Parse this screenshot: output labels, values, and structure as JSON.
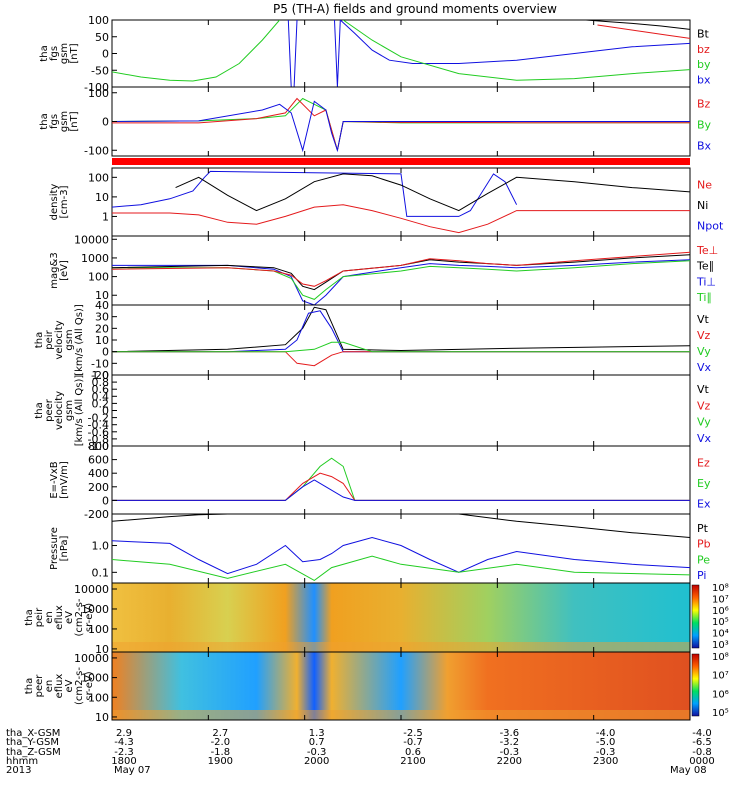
{
  "title": "P5 (TH-A) fields and ground moments overview",
  "colors": {
    "black": "#000000",
    "red": "#e41a1c",
    "green": "#22cc22",
    "blue": "#1010e0",
    "bar": "#ff0000"
  },
  "chart_data": [
    {
      "type": "line",
      "name": "fgs",
      "ylabel_lines": [
        "tha",
        "fgs",
        "gsm",
        "[nT]"
      ],
      "ylim": [
        -100,
        100
      ],
      "yticks": [
        "100",
        "50",
        "0",
        "-50",
        "-100"
      ],
      "legend": [
        {
          "label": "Bt",
          "color": "black"
        },
        {
          "label": "bz",
          "color": "red"
        },
        {
          "label": "by",
          "color": "green"
        },
        {
          "label": "bx",
          "color": "blue"
        }
      ],
      "series": [
        {
          "color": "green",
          "x": [
            0,
            0.05,
            0.1,
            0.14,
            0.18,
            0.22,
            0.26,
            0.29
          ],
          "y": [
            -55,
            -70,
            -80,
            -82,
            -70,
            -30,
            40,
            100
          ]
        },
        {
          "color": "blue",
          "x": [
            0.305,
            0.31,
            0.315,
            0.32
          ],
          "y": [
            100,
            -100,
            -100,
            100
          ]
        },
        {
          "color": "blue",
          "x": [
            0.385,
            0.39,
            0.395,
            0.42,
            0.45,
            0.48,
            0.52,
            0.6,
            0.7,
            0.8,
            0.9,
            1.0
          ],
          "y": [
            100,
            -100,
            100,
            60,
            10,
            -20,
            -30,
            -30,
            -20,
            0,
            20,
            30
          ]
        },
        {
          "color": "green",
          "x": [
            0.4,
            0.45,
            0.5,
            0.6,
            0.7,
            0.8,
            0.9,
            1.0
          ],
          "y": [
            100,
            40,
            -10,
            -60,
            -80,
            -75,
            -60,
            -48
          ]
        },
        {
          "color": "black",
          "x": [
            0.82,
            0.86,
            0.9,
            0.95,
            1.0
          ],
          "y": [
            100,
            95,
            90,
            82,
            72
          ]
        },
        {
          "color": "red",
          "x": [
            0.84,
            0.88,
            0.92,
            0.96,
            1.0
          ],
          "y": [
            85,
            75,
            65,
            55,
            45
          ]
        }
      ]
    },
    {
      "type": "line",
      "name": "fgs-gsm",
      "ylabel_lines": [
        "tha",
        "fgs",
        "gsm",
        "[nT]"
      ],
      "ylim": [
        -120,
        120
      ],
      "yticks": [
        "100",
        "0",
        "-100"
      ],
      "legend": [
        {
          "label": "Bz",
          "color": "red"
        },
        {
          "label": "By",
          "color": "green"
        },
        {
          "label": "Bx",
          "color": "blue"
        }
      ],
      "series": [
        {
          "color": "green",
          "x": [
            0,
            0.15,
            0.25,
            0.3,
            0.33,
            0.35,
            0.37,
            0.39,
            0.4,
            0.5,
            0.7,
            1.0
          ],
          "y": [
            0,
            2,
            10,
            20,
            80,
            60,
            40,
            -100,
            0,
            -5,
            -5,
            -4
          ]
        },
        {
          "color": "red",
          "x": [
            0,
            0.15,
            0.25,
            0.3,
            0.32,
            0.35,
            0.37,
            0.39,
            0.4,
            0.5,
            0.7,
            1.0
          ],
          "y": [
            -5,
            -5,
            10,
            30,
            80,
            20,
            40,
            -100,
            0,
            -3,
            -4,
            -4
          ]
        },
        {
          "color": "blue",
          "x": [
            0,
            0.15,
            0.26,
            0.29,
            0.31,
            0.33,
            0.35,
            0.37,
            0.38,
            0.39,
            0.4,
            0.5,
            0.7,
            1.0
          ],
          "y": [
            0,
            2,
            40,
            60,
            30,
            -100,
            70,
            40,
            -40,
            -100,
            0,
            0,
            0,
            0
          ]
        }
      ]
    },
    {
      "type": "line",
      "name": "density",
      "ylabel_lines": [
        "density",
        "[cm-3]"
      ],
      "log": true,
      "ylim": [
        0.1,
        300
      ],
      "yticks": [
        "100",
        "10",
        "1"
      ],
      "legend": [
        {
          "label": "Ne",
          "color": "red"
        },
        {
          "label": "Ni",
          "color": "black"
        },
        {
          "label": "Npot",
          "color": "blue"
        }
      ],
      "series": [
        {
          "color": "blue",
          "x": [
            0,
            0.05,
            0.1,
            0.14,
            0.16,
            0.17,
            0.5,
            0.51,
            0.6,
            0.62,
            0.66,
            0.68,
            0.7
          ],
          "y": [
            3,
            4,
            8,
            20,
            100,
            200,
            150,
            1,
            1,
            2,
            150,
            60,
            4
          ]
        },
        {
          "color": "black",
          "x": [
            0.11,
            0.15,
            0.2,
            0.25,
            0.3,
            0.35,
            0.4,
            0.45,
            0.5,
            0.55,
            0.6,
            0.65,
            0.7,
            0.8,
            0.9,
            1.0
          ],
          "y": [
            30,
            100,
            12,
            2,
            8,
            60,
            150,
            120,
            40,
            8,
            2,
            15,
            100,
            60,
            30,
            18
          ]
        },
        {
          "color": "red",
          "x": [
            0,
            0.05,
            0.1,
            0.15,
            0.2,
            0.25,
            0.3,
            0.35,
            0.4,
            0.45,
            0.5,
            0.55,
            0.6,
            0.65,
            0.7,
            0.8,
            0.9,
            1.0
          ],
          "y": [
            1.5,
            1.5,
            1.5,
            1.2,
            0.5,
            0.4,
            1.0,
            3,
            4,
            2,
            0.8,
            0.3,
            0.15,
            0.4,
            2,
            2,
            2,
            2
          ]
        }
      ]
    },
    {
      "type": "line",
      "name": "temperature",
      "ylabel_lines": [
        "mag&3",
        "[eV]"
      ],
      "log": true,
      "ylim": [
        3,
        15000
      ],
      "yticks": [
        "10000",
        "1000",
        "100",
        "10"
      ],
      "legend": [
        {
          "label": "Te⊥",
          "color": "red"
        },
        {
          "label": "Te∥",
          "color": "black"
        },
        {
          "label": "Ti⊥",
          "color": "blue"
        },
        {
          "label": "Ti∥",
          "color": "green"
        }
      ],
      "series": [
        {
          "color": "blue",
          "x": [
            0,
            0.2,
            0.28,
            0.31,
            0.33,
            0.35,
            0.37,
            0.4,
            0.5,
            0.55,
            0.6,
            0.65,
            0.7,
            0.8,
            0.9,
            1.0
          ],
          "y": [
            400,
            400,
            250,
            100,
            5,
            3,
            10,
            100,
            300,
            500,
            400,
            350,
            300,
            400,
            600,
            800
          ]
        },
        {
          "color": "green",
          "x": [
            0,
            0.2,
            0.28,
            0.31,
            0.33,
            0.35,
            0.37,
            0.4,
            0.5,
            0.55,
            0.6,
            0.65,
            0.7,
            0.8,
            0.9,
            1.0
          ],
          "y": [
            300,
            300,
            200,
            80,
            10,
            6,
            20,
            100,
            200,
            350,
            300,
            250,
            200,
            300,
            500,
            700
          ]
        },
        {
          "color": "black",
          "x": [
            0,
            0.2,
            0.28,
            0.31,
            0.33,
            0.35,
            0.37,
            0.4,
            0.5,
            0.55,
            0.6,
            0.65,
            0.7,
            0.8,
            0.9,
            1.0
          ],
          "y": [
            300,
            400,
            300,
            150,
            30,
            20,
            50,
            200,
            400,
            800,
            600,
            500,
            400,
            600,
            1000,
            1500
          ]
        },
        {
          "color": "red",
          "x": [
            0,
            0.2,
            0.28,
            0.31,
            0.33,
            0.35,
            0.37,
            0.4,
            0.5,
            0.55,
            0.6,
            0.65,
            0.7,
            0.8,
            0.9,
            1.0
          ],
          "y": [
            250,
            300,
            200,
            120,
            40,
            30,
            60,
            200,
            400,
            900,
            700,
            500,
            400,
            700,
            1200,
            2000
          ]
        }
      ]
    },
    {
      "type": "line",
      "name": "peir-velocity",
      "ylabel_lines": [
        "tha",
        "peir",
        "velocity",
        "gsm",
        "[km/s (All Qs)]"
      ],
      "ylim": [
        -20,
        40
      ],
      "yticks": [
        "40",
        "30",
        "20",
        "10",
        "0",
        "-10",
        "-20"
      ],
      "legend": [
        {
          "label": "Vt",
          "color": "black"
        },
        {
          "label": "Vz",
          "color": "red"
        },
        {
          "label": "Vy",
          "color": "green"
        },
        {
          "label": "Vx",
          "color": "blue"
        }
      ],
      "series": [
        {
          "color": "black",
          "x": [
            0,
            0.2,
            0.3,
            0.33,
            0.35,
            0.37,
            0.4,
            0.5,
            0.7,
            1.0
          ],
          "y": [
            0,
            2,
            6,
            20,
            38,
            36,
            2,
            1,
            3,
            5
          ]
        },
        {
          "color": "blue",
          "x": [
            0,
            0.2,
            0.3,
            0.32,
            0.34,
            0.36,
            0.38,
            0.4,
            0.5,
            1.0
          ],
          "y": [
            0,
            0,
            2,
            10,
            33,
            35,
            20,
            0,
            0,
            0
          ]
        },
        {
          "color": "red",
          "x": [
            0,
            0.3,
            0.32,
            0.35,
            0.38,
            0.4,
            0.5,
            1.0
          ],
          "y": [
            0,
            0,
            -10,
            -12,
            -3,
            0,
            0,
            0
          ]
        },
        {
          "color": "green",
          "x": [
            0,
            0.3,
            0.35,
            0.38,
            0.4,
            0.45,
            1.0
          ],
          "y": [
            0,
            0,
            2,
            8,
            8,
            0,
            0
          ]
        }
      ]
    },
    {
      "type": "line",
      "name": "peer-velocity",
      "ylabel_lines": [
        "tha",
        "peer",
        "velocity",
        "gsm",
        "[km/s (All Qs)]"
      ],
      "ylim": [
        -1,
        1
      ],
      "yticks": [
        "1.0",
        "0.8",
        "0.6",
        "0.4",
        "0.2",
        "0",
        "-0.2",
        "-0.4",
        "-0.6",
        "-0.8",
        "-1.0"
      ],
      "legend": [
        {
          "label": "Vt",
          "color": "black"
        },
        {
          "label": "Vz",
          "color": "red"
        },
        {
          "label": "Vy",
          "color": "green"
        },
        {
          "label": "Vx",
          "color": "blue"
        }
      ],
      "series": []
    },
    {
      "type": "line",
      "name": "efield",
      "ylabel_lines": [
        "E=-VxB",
        "[mV/m]"
      ],
      "ylim": [
        -200,
        800
      ],
      "yticks": [
        "800",
        "600",
        "400",
        "200",
        "0",
        "-200"
      ],
      "legend": [
        {
          "label": "Ez",
          "color": "red"
        },
        {
          "label": "Ey",
          "color": "green"
        },
        {
          "label": "Ex",
          "color": "blue"
        }
      ],
      "series": [
        {
          "color": "green",
          "x": [
            0,
            0.3,
            0.33,
            0.36,
            0.38,
            0.4,
            0.42,
            1.0
          ],
          "y": [
            0,
            0,
            200,
            500,
            620,
            500,
            0,
            0
          ]
        },
        {
          "color": "red",
          "x": [
            0,
            0.3,
            0.33,
            0.36,
            0.38,
            0.4,
            0.42,
            1.0
          ],
          "y": [
            0,
            0,
            250,
            400,
            350,
            250,
            0,
            0
          ]
        },
        {
          "color": "blue",
          "x": [
            0,
            0.3,
            0.33,
            0.35,
            0.37,
            0.4,
            0.42,
            1.0
          ],
          "y": [
            0,
            0,
            200,
            300,
            200,
            50,
            0,
            0
          ]
        }
      ]
    },
    {
      "type": "line",
      "name": "pressure",
      "ylabel_lines": [
        "Pressure",
        "[nPa]"
      ],
      "log": true,
      "ylim": [
        0.04,
        15
      ],
      "yticks": [
        "1.0",
        "0.1"
      ],
      "legend": [
        {
          "label": "Pt",
          "color": "black"
        },
        {
          "label": "Pb",
          "color": "red"
        },
        {
          "label": "Pe",
          "color": "green"
        },
        {
          "label": "Pi",
          "color": "blue"
        }
      ],
      "series": [
        {
          "color": "black",
          "x": [
            0,
            0.1,
            0.15,
            0.2
          ],
          "y": [
            8,
            12,
            14,
            15
          ]
        },
        {
          "color": "black",
          "x": [
            0.6,
            0.7,
            0.8,
            0.9,
            1.0
          ],
          "y": [
            15,
            8,
            5,
            3,
            2
          ]
        },
        {
          "color": "blue",
          "x": [
            0,
            0.1,
            0.15,
            0.2,
            0.25,
            0.3,
            0.33,
            0.36,
            0.38,
            0.4,
            0.45,
            0.5,
            0.55,
            0.6,
            0.65,
            0.7,
            0.8,
            0.9,
            1.0
          ],
          "y": [
            1.5,
            1.2,
            0.3,
            0.09,
            0.2,
            1.0,
            0.25,
            0.3,
            0.5,
            1.0,
            2,
            1,
            0.3,
            0.1,
            0.3,
            0.6,
            0.3,
            0.2,
            0.15
          ]
        },
        {
          "color": "green",
          "x": [
            0,
            0.1,
            0.2,
            0.3,
            0.35,
            0.38,
            0.45,
            0.5,
            0.6,
            0.7,
            0.8,
            1.0
          ],
          "y": [
            0.3,
            0.2,
            0.06,
            0.2,
            0.05,
            0.15,
            0.4,
            0.2,
            0.1,
            0.2,
            0.1,
            0.08
          ]
        }
      ]
    },
    {
      "type": "heatmap",
      "name": "peir-energy-flux",
      "ylabel_lines": [
        "tha",
        "peir",
        "en",
        "eflux",
        "eV",
        "(cm2-s-",
        "sr-eV)"
      ],
      "log": true,
      "ylim": [
        7,
        20000
      ],
      "yticks": [
        "10000",
        "1000",
        "100",
        "10"
      ],
      "colorbar_labels": [
        "10⁸",
        "10⁷",
        "10⁶",
        "10⁵",
        "10⁴",
        "10³"
      ]
    },
    {
      "type": "heatmap",
      "name": "peer-energy-flux",
      "ylabel_lines": [
        "tha",
        "peer",
        "en",
        "eflux",
        "eV",
        "(cm2-s-",
        "sr-eV)"
      ],
      "log": true,
      "ylim": [
        7,
        20000
      ],
      "yticks": [
        "10000",
        "1000",
        "100",
        "10"
      ],
      "colorbar_labels": [
        "10⁸",
        "10⁷",
        "10⁶",
        "10⁵"
      ]
    }
  ],
  "axis_table": {
    "rows": [
      {
        "label": "tha_X-GSM",
        "values": [
          "2.9",
          "2.7",
          "1.3",
          "-2.5",
          "-3.6",
          "-4.0",
          "-4.0"
        ]
      },
      {
        "label": "tha_Y-GSM",
        "values": [
          "-4.3",
          "-2.0",
          "0.7",
          "-0.7",
          "-3.2",
          "-5.0",
          "-6.5"
        ]
      },
      {
        "label": "tha_Z-GSM",
        "values": [
          "-2.3",
          "-1.8",
          "-0.3",
          "0.6",
          "-0.3",
          "-0.3",
          "-0.8"
        ]
      },
      {
        "label": "hhmm",
        "values": [
          "1800",
          "1900",
          "2000",
          "2100",
          "2200",
          "2300",
          "0000"
        ]
      }
    ],
    "year": "2013",
    "date_start": "May 07",
    "date_end": "May 08"
  }
}
